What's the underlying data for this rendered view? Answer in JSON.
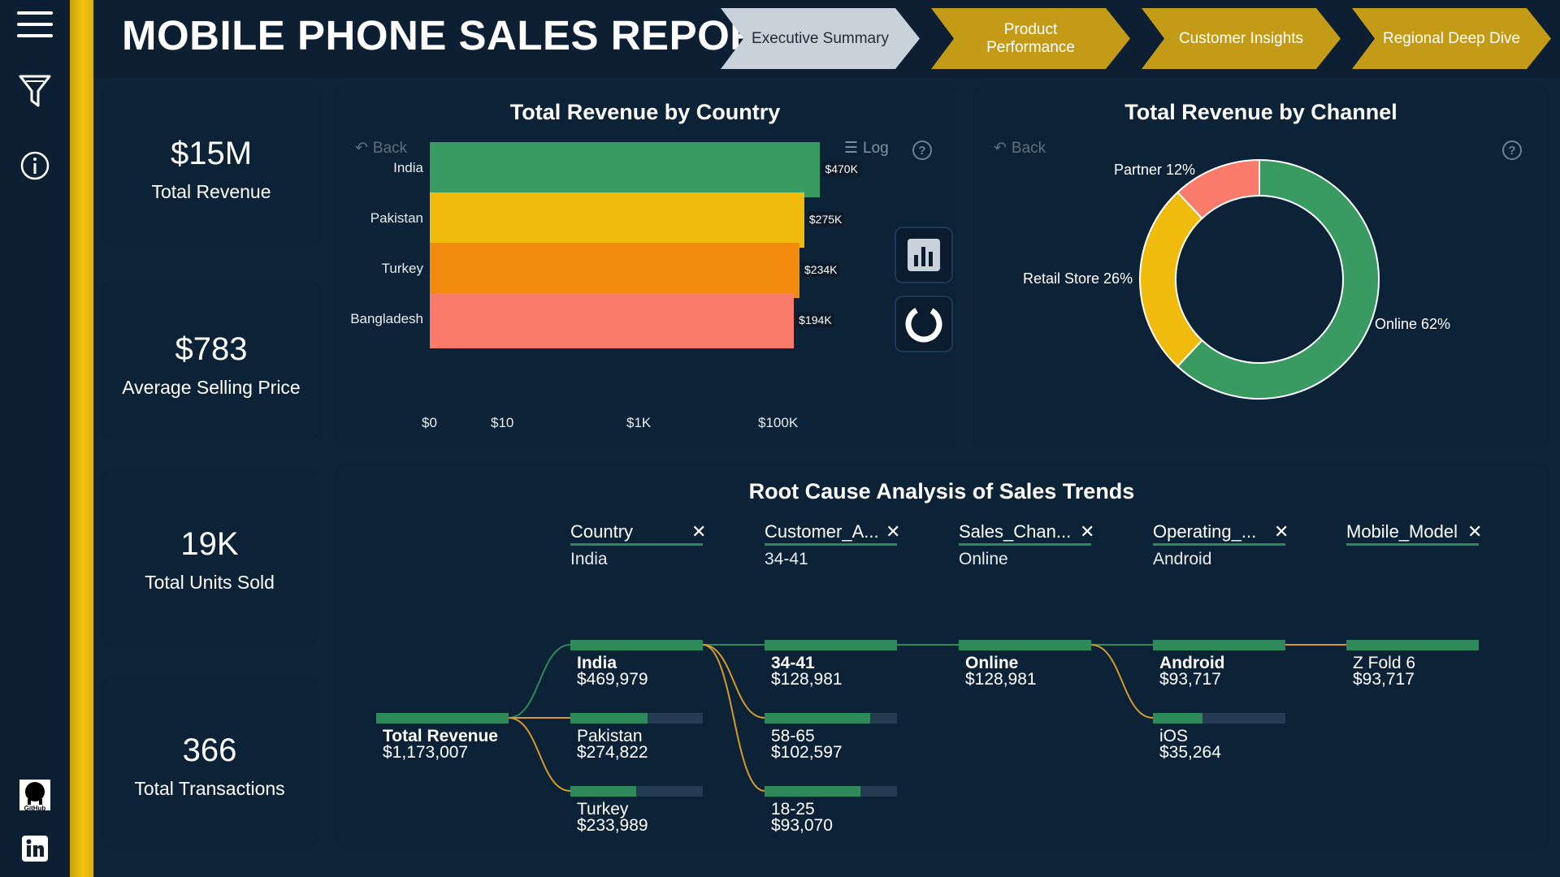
{
  "header": {
    "title": "MOBILE PHONE SALES REPORT",
    "tabs": [
      {
        "label": "Executive Summary",
        "active": true
      },
      {
        "label": "Product Performance",
        "active": false
      },
      {
        "label": "Customer Insights",
        "active": false
      },
      {
        "label": "Regional Deep Dive",
        "active": false
      }
    ]
  },
  "rail": {
    "icons": [
      "menu-icon",
      "filter-icon",
      "info-icon",
      "github-icon",
      "linkedin-icon"
    ],
    "github_text": "GitHub"
  },
  "kpis": [
    {
      "value": "$15M",
      "label": "Total Revenue"
    },
    {
      "value": "$783",
      "label": "Average Selling Price"
    },
    {
      "value": "19K",
      "label": "Total Units Sold"
    },
    {
      "value": "366",
      "label": "Total Transactions"
    }
  ],
  "country_chart": {
    "title": "Total Revenue by Country",
    "back_label": "Back",
    "log_label": "Log",
    "help_label": "?",
    "ticks": [
      "$0",
      "$10",
      "$1K",
      "$100K"
    ]
  },
  "channel_chart": {
    "title": "Total Revenue by Channel",
    "back_label": "Back",
    "help_label": "?"
  },
  "chart_data": [
    {
      "type": "bar",
      "orientation": "horizontal",
      "title": "Total Revenue by Country",
      "xscale": "log",
      "categories": [
        "India",
        "Pakistan",
        "Turkey",
        "Bangladesh"
      ],
      "values": [
        470000,
        275000,
        234000,
        194000
      ],
      "value_labels": [
        "$470K",
        "$275K",
        "$234K",
        "$194K"
      ],
      "colors": [
        "#3a9b62",
        "#f1bb0d",
        "#f28a0e",
        "#fa7b6b"
      ]
    },
    {
      "type": "pie",
      "variant": "donut",
      "title": "Total Revenue by Channel",
      "categories": [
        "Online",
        "Partner",
        "Retail Store"
      ],
      "values": [
        62,
        12,
        26
      ],
      "labels": [
        "Online 62%",
        "Partner 12%",
        "Retail Store 26%"
      ],
      "colors": [
        "#3a9b62",
        "#fa7b6b",
        "#f1bb0d"
      ]
    }
  ],
  "decomp": {
    "title": "Root Cause Analysis of Sales Trends",
    "close_glyph": "✕",
    "levels": [
      {
        "header": "Country",
        "selected": "India"
      },
      {
        "header": "Customer_A...",
        "selected": "34-41"
      },
      {
        "header": "Sales_Chan...",
        "selected": "Online"
      },
      {
        "header": "Operating_...",
        "selected": "Android"
      },
      {
        "header": "Mobile_Model",
        "selected": ""
      }
    ],
    "root": {
      "name": "Total Revenue",
      "value": "$1,173,007",
      "fill": 1.0
    },
    "columns": [
      [
        {
          "name": "India",
          "value": "$469,979",
          "fill": 1.0,
          "selected": true
        },
        {
          "name": "Pakistan",
          "value": "$274,822",
          "fill": 0.585,
          "selected": false
        },
        {
          "name": "Turkey",
          "value": "$233,989",
          "fill": 0.498,
          "selected": false
        }
      ],
      [
        {
          "name": "34-41",
          "value": "$128,981",
          "fill": 1.0,
          "selected": true
        },
        {
          "name": "58-65",
          "value": "$102,597",
          "fill": 0.795,
          "selected": false
        },
        {
          "name": "18-25",
          "value": "$93,070",
          "fill": 0.722,
          "selected": false
        }
      ],
      [
        {
          "name": "Online",
          "value": "$128,981",
          "fill": 1.0,
          "selected": true
        }
      ],
      [
        {
          "name": "Android",
          "value": "$93,717",
          "fill": 1.0,
          "selected": true
        },
        {
          "name": "iOS",
          "value": "$35,264",
          "fill": 0.376,
          "selected": false
        }
      ],
      [
        {
          "name": "Z Fold 6",
          "value": "$93,717",
          "fill": 1.0,
          "selected": false
        }
      ]
    ]
  }
}
